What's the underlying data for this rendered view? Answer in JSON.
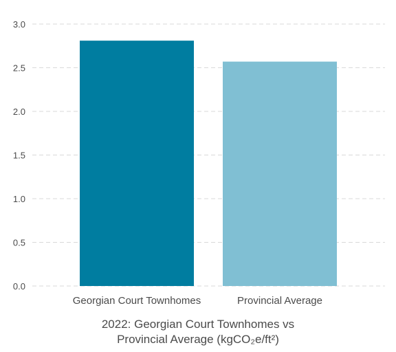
{
  "chart_data": {
    "type": "bar",
    "categories": [
      "Georgian Court Townhomes",
      "Provincial Average"
    ],
    "values": [
      2.81,
      2.57
    ],
    "colors": [
      "#007da0",
      "#80bfd3"
    ],
    "title_line1": "2022: Georgian Court Townhomes vs",
    "title_line2": "Provincial Average (kgCO₂e/ft²)",
    "xlabel": "",
    "ylabel": "",
    "ylim": [
      0,
      3.0
    ],
    "yticks": [
      "0.0",
      "0.5",
      "1.0",
      "1.5",
      "2.0",
      "2.5",
      "3.0"
    ],
    "grid": true,
    "grid_style": "dashed",
    "legend": "none"
  }
}
